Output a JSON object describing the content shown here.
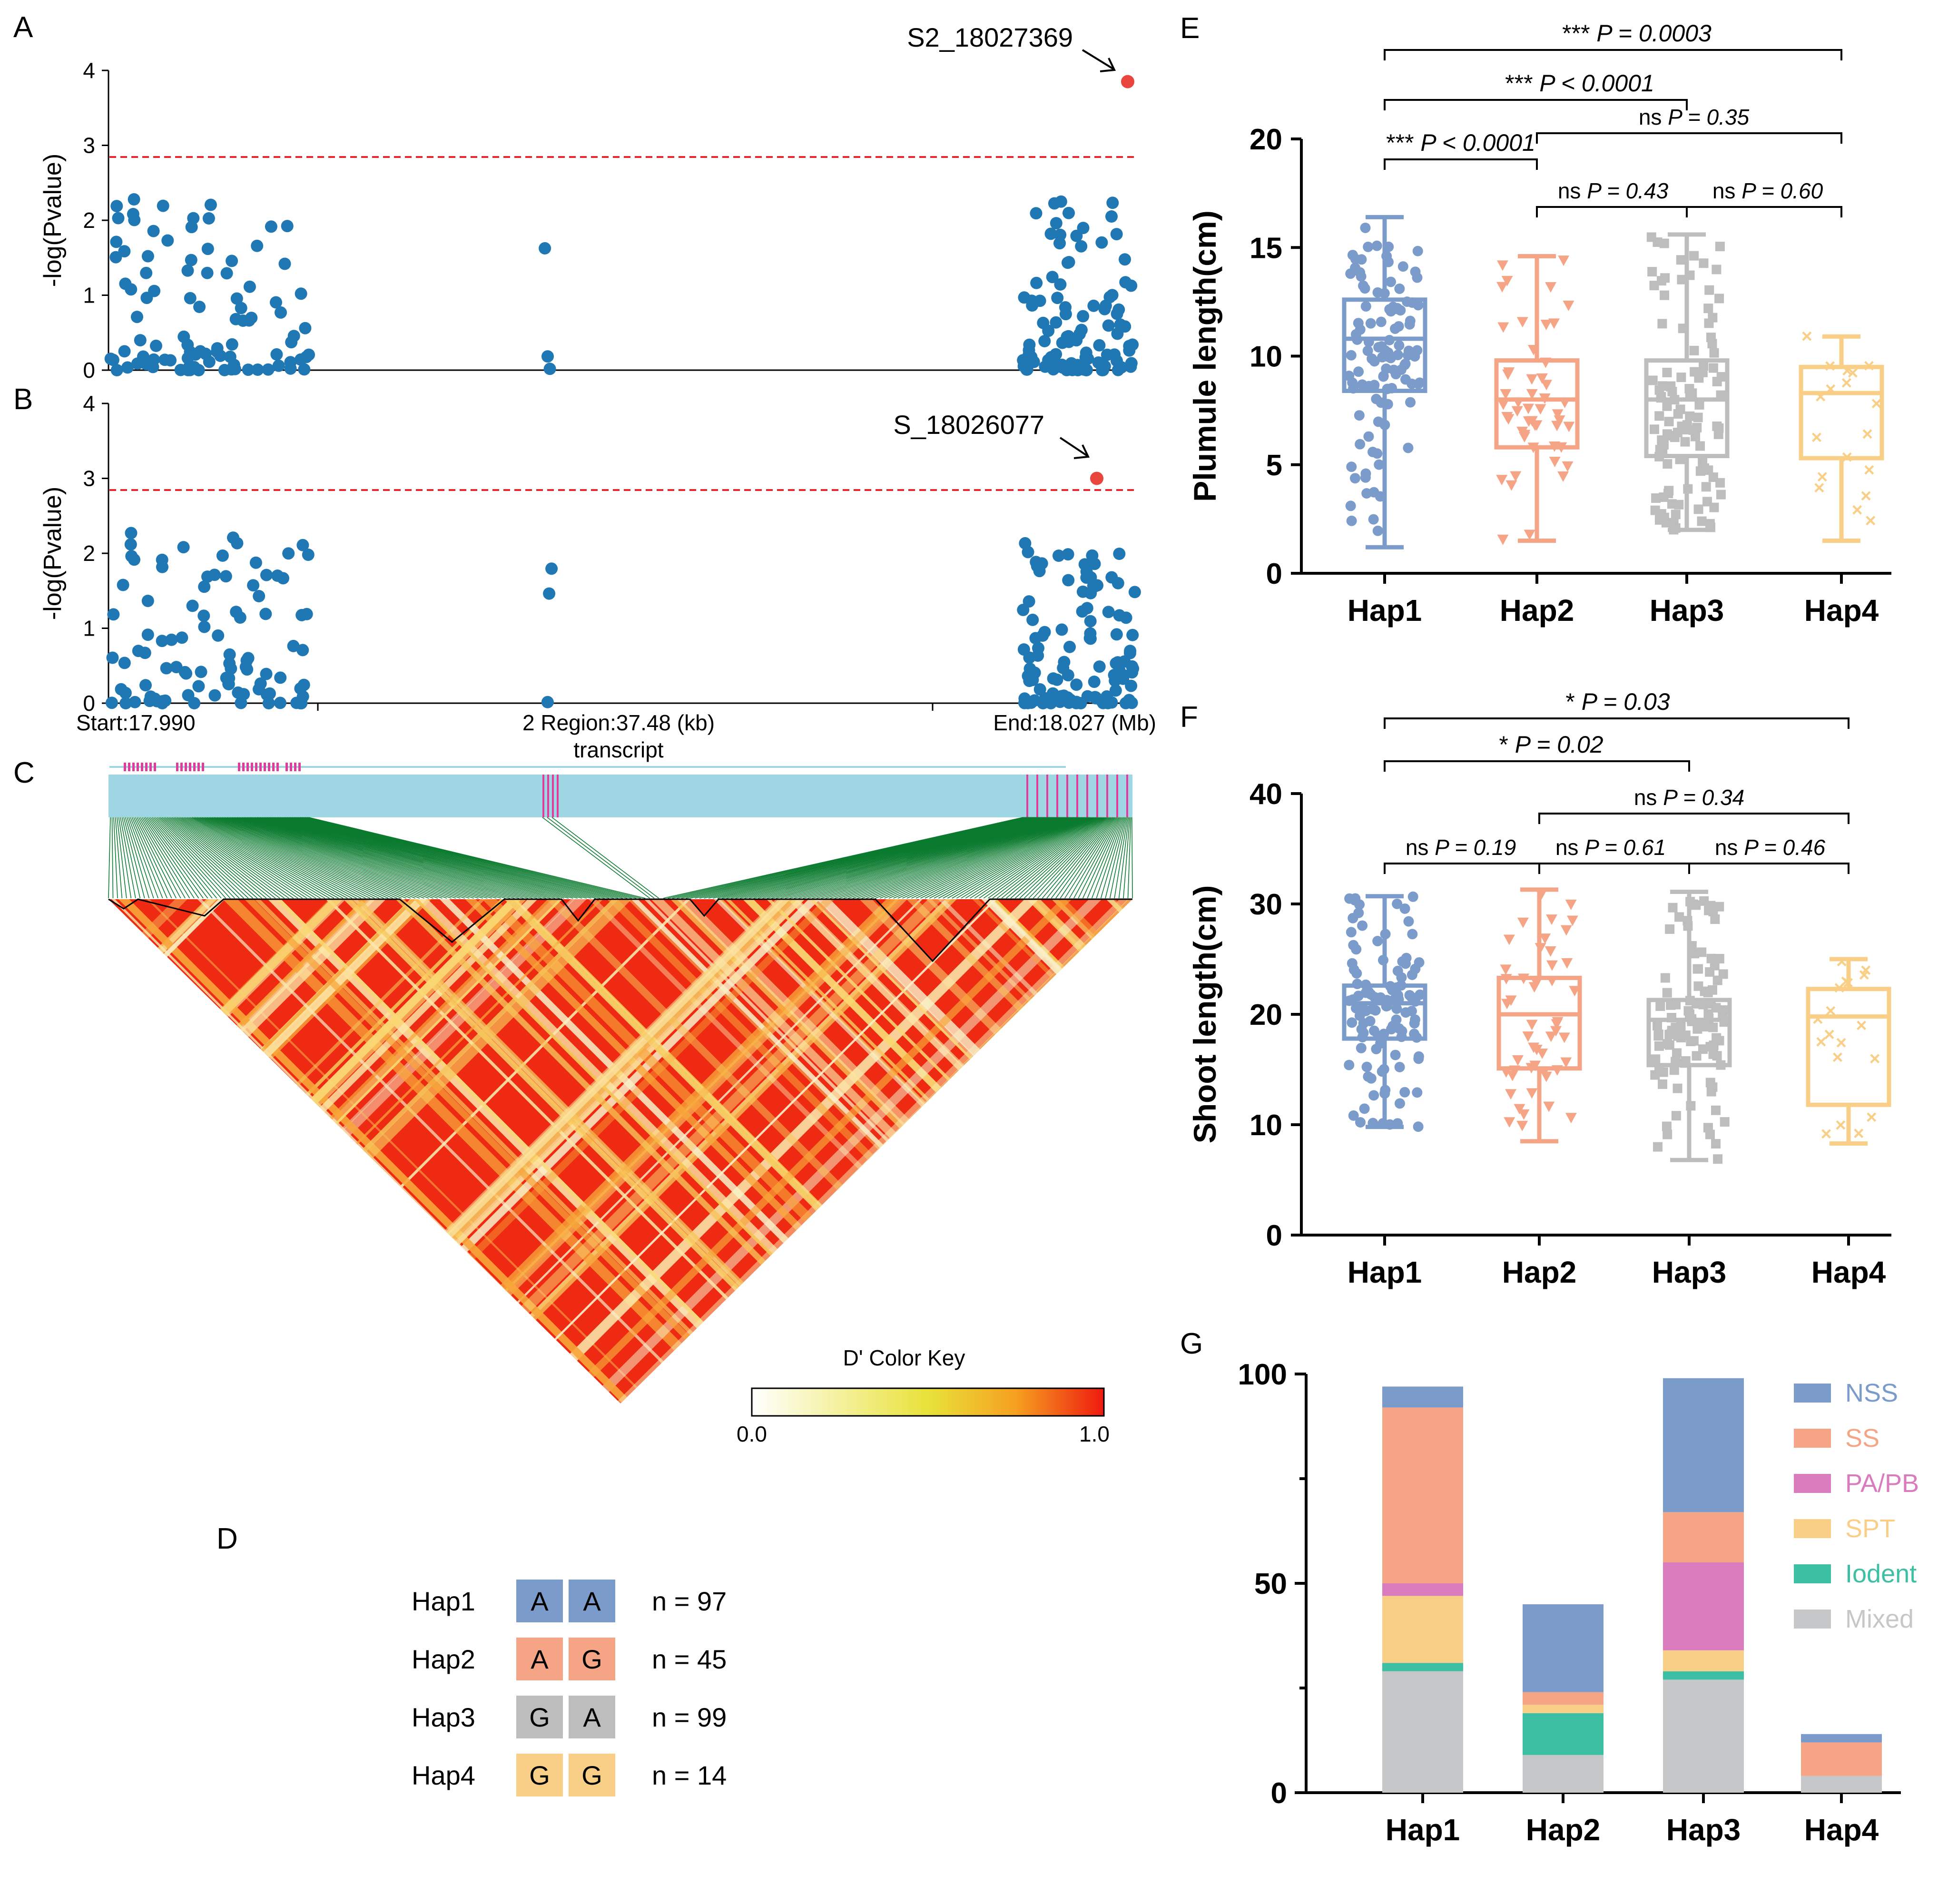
{
  "panel_labels": [
    "A",
    "B",
    "C",
    "D",
    "E",
    "F",
    "G"
  ],
  "colors": {
    "manhattan_point": "#1f77b4",
    "lead_snp": "#e8463c",
    "threshold_line": "#e8242c",
    "transcript_bar": "#9ed6e3",
    "exon": "#e03c9c",
    "ld_link": "#0a7a2e",
    "hap1": "#7b9ccb",
    "hap2": "#f5a586",
    "hap3": "#bdbdbd",
    "hap4": "#f9cf88",
    "NSS": "#7b9ccb",
    "SS": "#f5a586",
    "PA/PB": "#d97bbd",
    "SPT": "#f9cf88",
    "Iodent": "#3dbfa4",
    "Mixed": "#c5c7c8"
  },
  "manhattan": {
    "ylabel": "-log(Pvalue)",
    "yticks": [
      "0",
      "1",
      "2",
      "3",
      "4"
    ],
    "threshold": 2.85,
    "panelA": {
      "lead_label": "S2_18027369",
      "lead_value": 3.85
    },
    "panelB": {
      "lead_label": "S_18026077",
      "lead_value": 3.0
    },
    "xaxis": {
      "start": "Start:17.990",
      "region": "2 Region:37.48 (kb)",
      "end": "End:18.027 (Mb)"
    }
  },
  "ld": {
    "transcript_label": "transcript",
    "key_title": "D' Color Key",
    "key_min": "0.0",
    "key_max": "1.0"
  },
  "haplotypes": {
    "rows": [
      {
        "name": "Hap1",
        "a1": "A",
        "a2": "A",
        "n": "n = 97"
      },
      {
        "name": "Hap2",
        "a1": "A",
        "a2": "G",
        "n": "n = 45"
      },
      {
        "name": "Hap3",
        "a1": "G",
        "a2": "A",
        "n": "n = 99"
      },
      {
        "name": "Hap4",
        "a1": "G",
        "a2": "G",
        "n": "n = 14"
      }
    ]
  },
  "chart_data": [
    {
      "panel": "E",
      "type": "box",
      "ylabel": "Plumule length(cm)",
      "ylim": [
        0,
        20
      ],
      "yticks": [
        "0",
        "5",
        "10",
        "15",
        "20"
      ],
      "categories": [
        "Hap1",
        "Hap2",
        "Hap3",
        "Hap4"
      ],
      "boxes": [
        {
          "min": 1.2,
          "q1": 8.4,
          "median": 10.8,
          "q3": 12.6,
          "max": 16.4
        },
        {
          "min": 1.5,
          "q1": 5.8,
          "median": 8.0,
          "q3": 9.8,
          "max": 14.6
        },
        {
          "min": 2.0,
          "q1": 5.4,
          "median": 8.0,
          "q3": 9.8,
          "max": 15.6
        },
        {
          "min": 1.5,
          "q1": 5.3,
          "median": 8.3,
          "q3": 9.5,
          "max": 10.9
        }
      ],
      "comparisons": [
        {
          "prefix": "***",
          "p": "P = 0.0003"
        },
        {
          "prefix": "***",
          "p": "P < 0.0001"
        },
        {
          "prefix": "ns",
          "p": "P = 0.35"
        },
        {
          "prefix": "***",
          "p": "P < 0.0001"
        },
        {
          "prefix": "ns",
          "p": "P = 0.43"
        },
        {
          "prefix": "ns",
          "p": "P = 0.60"
        }
      ]
    },
    {
      "panel": "F",
      "type": "box",
      "ylabel": "Shoot length(cm)",
      "ylim": [
        0,
        40
      ],
      "yticks": [
        "0",
        "10",
        "20",
        "30",
        "40"
      ],
      "categories": [
        "Hap1",
        "Hap2",
        "Hap3",
        "Hap4"
      ],
      "boxes": [
        {
          "min": 9.8,
          "q1": 17.8,
          "median": 21.0,
          "q3": 22.6,
          "max": 30.7
        },
        {
          "min": 8.5,
          "q1": 15.1,
          "median": 20.0,
          "q3": 23.3,
          "max": 31.3
        },
        {
          "min": 6.8,
          "q1": 15.4,
          "median": 19.5,
          "q3": 21.3,
          "max": 31.1
        },
        {
          "min": 8.3,
          "q1": 11.8,
          "median": 19.8,
          "q3": 22.3,
          "max": 25.0
        }
      ],
      "comparisons": [
        {
          "prefix": "*",
          "p": "P = 0.03"
        },
        {
          "prefix": "*",
          "p": "P = 0.02"
        },
        {
          "prefix": "ns",
          "p": "P = 0.34"
        },
        {
          "prefix": "ns",
          "p": "P = 0.19"
        },
        {
          "prefix": "ns",
          "p": "P = 0.61"
        },
        {
          "prefix": "ns",
          "p": "P = 0.46"
        }
      ]
    },
    {
      "panel": "G",
      "type": "bar",
      "stacked": true,
      "ylim": [
        0,
        100
      ],
      "yticks": [
        "0",
        "50",
        "100"
      ],
      "categories": [
        "Hap1",
        "Hap2",
        "Hap3",
        "Hap4"
      ],
      "series": [
        {
          "name": "Mixed",
          "values": [
            29,
            9,
            27,
            4
          ]
        },
        {
          "name": "Iodent",
          "values": [
            2,
            10,
            2,
            0
          ]
        },
        {
          "name": "SPT",
          "values": [
            16,
            2,
            5,
            0
          ]
        },
        {
          "name": "PA/PB",
          "values": [
            3,
            0,
            21,
            0
          ]
        },
        {
          "name": "SS",
          "values": [
            42,
            3,
            12,
            8
          ]
        },
        {
          "name": "NSS",
          "values": [
            5,
            21,
            32,
            2
          ]
        }
      ],
      "legend": [
        "NSS",
        "SS",
        "PA/PB",
        "SPT",
        "Iodent",
        "Mixed"
      ]
    }
  ]
}
